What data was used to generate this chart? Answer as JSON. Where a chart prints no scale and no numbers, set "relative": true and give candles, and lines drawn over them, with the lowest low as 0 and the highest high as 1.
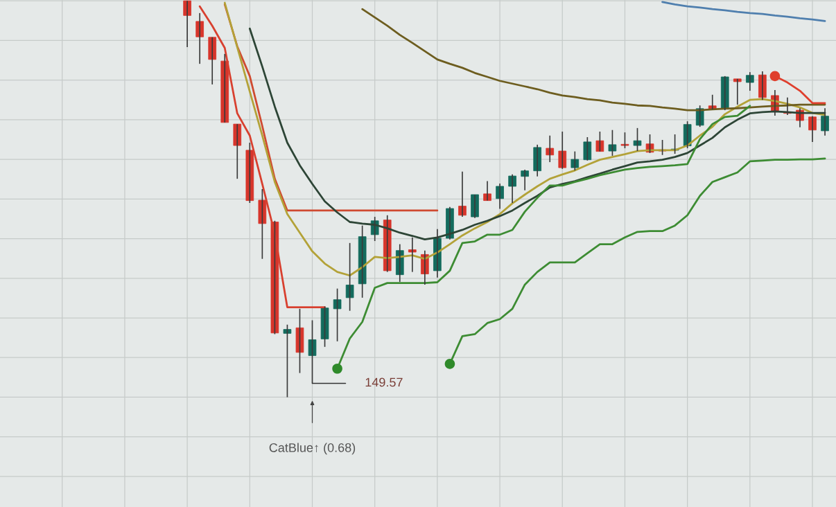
{
  "chart_data": {
    "type": "candlestick",
    "relative": true,
    "grid": true,
    "categories": [
      null,
      null,
      null,
      null,
      null,
      null,
      null,
      null,
      null,
      null,
      null,
      null,
      null,
      null,
      null,
      null,
      null,
      null,
      null,
      null,
      null,
      null,
      null,
      null,
      null,
      null,
      null,
      null,
      null,
      null,
      null,
      null,
      null,
      null,
      null,
      null,
      null,
      null,
      null,
      null,
      null,
      null,
      null,
      null,
      null,
      null,
      null,
      null,
      null,
      null,
      null,
      null
    ],
    "series": [
      {
        "type": "line",
        "color": "#d8402f",
        "values": [
          null,
          0.986,
          0.937,
          0.881,
          0.716,
          0.66,
          0.538,
          0.412,
          0.227,
          0.227,
          0.227,
          0.227,
          null,
          null,
          null,
          null,
          null,
          null,
          null,
          null,
          null,
          null,
          null,
          null,
          null,
          null,
          null,
          null,
          null,
          null,
          null,
          null,
          null,
          null,
          null,
          null,
          null,
          null,
          null,
          null,
          null,
          null,
          null,
          null,
          null,
          null,
          null,
          null,
          null,
          null,
          null,
          null
        ]
      },
      {
        "type": "line",
        "color": "#cf4a30",
        "values": [
          null,
          null,
          null,
          0.991,
          0.885,
          0.81,
          0.684,
          0.551,
          0.471,
          0.471,
          0.471,
          0.471,
          0.471,
          0.471,
          0.471,
          0.471,
          0.471,
          0.471,
          0.471,
          0.471,
          0.471,
          null,
          null,
          null,
          null,
          null,
          null,
          null,
          null,
          null,
          null,
          null,
          null,
          null,
          null,
          null,
          null,
          null,
          null,
          null,
          null,
          null,
          null,
          null,
          null,
          null,
          null,
          null,
          null,
          null,
          null,
          null
        ]
      },
      {
        "type": "line",
        "color": "#b3a238",
        "values": [
          null,
          null,
          null,
          0.995,
          0.883,
          0.771,
          0.66,
          0.543,
          0.462,
          0.415,
          0.368,
          0.337,
          0.316,
          0.307,
          0.328,
          0.354,
          0.351,
          0.354,
          0.358,
          0.349,
          0.365,
          0.386,
          0.408,
          0.426,
          0.442,
          0.462,
          0.489,
          0.511,
          0.532,
          0.551,
          0.562,
          0.572,
          0.586,
          0.599,
          0.606,
          0.613,
          0.621,
          0.623,
          0.623,
          0.623,
          0.635,
          0.66,
          0.682,
          0.714,
          0.733,
          0.75,
          0.752,
          0.747,
          0.74,
          0.731,
          0.717,
          0.712
        ]
      },
      {
        "type": "line",
        "color": "#2d4536",
        "values": [
          null,
          null,
          null,
          null,
          null,
          0.93,
          0.834,
          0.733,
          0.642,
          0.585,
          0.538,
          0.494,
          0.466,
          0.442,
          0.438,
          0.435,
          0.426,
          0.415,
          0.407,
          0.398,
          0.403,
          0.412,
          0.422,
          0.435,
          0.445,
          0.457,
          0.471,
          0.49,
          0.508,
          0.529,
          0.538,
          0.545,
          0.555,
          0.564,
          0.574,
          0.583,
          0.592,
          0.595,
          0.599,
          0.606,
          0.616,
          0.635,
          0.654,
          0.681,
          0.7,
          0.716,
          0.719,
          0.721,
          0.719,
          0.717,
          0.717,
          0.717
        ]
      },
      {
        "type": "line",
        "color": "#6d5d1f",
        "values": [
          null,
          null,
          null,
          null,
          null,
          null,
          null,
          null,
          null,
          null,
          null,
          null,
          null,
          null,
          0.979,
          0.958,
          0.937,
          0.914,
          0.894,
          0.873,
          0.852,
          0.841,
          0.831,
          0.818,
          0.808,
          0.798,
          0.791,
          0.784,
          0.777,
          0.768,
          0.761,
          0.757,
          0.752,
          0.749,
          0.743,
          0.74,
          0.736,
          0.735,
          0.731,
          0.728,
          0.724,
          0.724,
          0.726,
          0.728,
          0.729,
          0.731,
          0.733,
          0.735,
          0.736,
          0.738,
          0.738,
          0.738
        ]
      },
      {
        "type": "line",
        "color": "#4f7fae",
        "values": [
          null,
          null,
          null,
          null,
          null,
          null,
          null,
          null,
          null,
          null,
          null,
          null,
          null,
          null,
          null,
          null,
          null,
          null,
          null,
          null,
          null,
          null,
          null,
          null,
          null,
          null,
          null,
          null,
          null,
          null,
          null,
          null,
          null,
          null,
          null,
          null,
          null,
          null,
          0.997,
          0.991,
          0.986,
          0.983,
          0.979,
          0.976,
          0.972,
          0.969,
          0.967,
          0.963,
          0.96,
          0.956,
          0.953,
          0.949
        ]
      },
      {
        "type": "line",
        "color": "#3d8c33",
        "values": [
          null,
          null,
          null,
          null,
          null,
          null,
          null,
          null,
          null,
          null,
          null,
          null,
          0.072,
          0.148,
          0.19,
          0.276,
          0.288,
          0.288,
          0.288,
          0.288,
          0.29,
          0.319,
          0.389,
          0.393,
          0.41,
          0.41,
          0.422,
          0.468,
          0.503,
          0.534,
          0.534,
          0.543,
          0.551,
          0.56,
          0.567,
          0.574,
          0.578,
          0.581,
          0.583,
          0.585,
          0.588,
          0.651,
          0.689,
          0.707,
          0.71,
          0.735,
          null,
          null,
          null,
          null,
          null,
          null
        ]
      },
      {
        "type": "line",
        "color": "#3d8c33",
        "values": [
          null,
          null,
          null,
          null,
          null,
          null,
          null,
          null,
          null,
          null,
          null,
          null,
          null,
          null,
          null,
          null,
          null,
          null,
          null,
          null,
          null,
          0.084,
          0.154,
          0.159,
          0.187,
          0.197,
          0.223,
          0.284,
          0.316,
          0.34,
          0.34,
          0.34,
          0.363,
          0.386,
          0.386,
          0.403,
          0.417,
          0.419,
          0.419,
          0.433,
          0.459,
          0.508,
          0.543,
          0.555,
          0.567,
          0.595,
          0.597,
          0.599,
          0.599,
          0.6,
          0.6,
          0.602
        ]
      },
      {
        "type": "line",
        "color": "#df3f2d",
        "values": [
          null,
          null,
          null,
          null,
          null,
          null,
          null,
          null,
          null,
          null,
          null,
          null,
          null,
          null,
          null,
          null,
          null,
          null,
          null,
          null,
          null,
          null,
          null,
          null,
          null,
          null,
          null,
          null,
          null,
          null,
          null,
          null,
          null,
          null,
          null,
          null,
          null,
          null,
          null,
          null,
          null,
          null,
          null,
          null,
          null,
          null,
          null,
          0.81,
          0.794,
          0.773,
          0.742,
          0.742
        ]
      },
      {
        "type": "scatter",
        "marker": "circle",
        "color": "#2f8a2a",
        "values": [
          null,
          null,
          null,
          null,
          null,
          null,
          null,
          null,
          null,
          null,
          null,
          null,
          0.072,
          null,
          null,
          null,
          null,
          null,
          null,
          null,
          null,
          null,
          null,
          null,
          null,
          null,
          null,
          null,
          null,
          null,
          null,
          null,
          null,
          null,
          null,
          null,
          null,
          null,
          null,
          null,
          null,
          null,
          null,
          null,
          null,
          null,
          null,
          null,
          null,
          null,
          null,
          null
        ]
      },
      {
        "type": "scatter",
        "marker": "circle",
        "color": "#2f8a2a",
        "values": [
          null,
          null,
          null,
          null,
          null,
          null,
          null,
          null,
          null,
          null,
          null,
          null,
          null,
          null,
          null,
          null,
          null,
          null,
          null,
          null,
          null,
          0.084,
          null,
          null,
          null,
          null,
          null,
          null,
          null,
          null,
          null,
          null,
          null,
          null,
          null,
          null,
          null,
          null,
          null,
          null,
          null,
          null,
          null,
          null,
          null,
          null,
          null,
          null,
          null,
          null,
          null,
          null
        ]
      },
      {
        "type": "scatter",
        "marker": "circle",
        "color": "#df3f2d",
        "values": [
          null,
          null,
          null,
          null,
          null,
          null,
          null,
          null,
          null,
          null,
          null,
          null,
          null,
          null,
          null,
          null,
          null,
          null,
          null,
          null,
          null,
          null,
          null,
          null,
          null,
          null,
          null,
          null,
          null,
          null,
          null,
          null,
          null,
          null,
          null,
          null,
          null,
          null,
          null,
          null,
          null,
          null,
          null,
          null,
          null,
          null,
          null,
          0.81,
          null,
          null,
          null,
          null
        ]
      },
      {
        "ohlc": [
          [
            1.0,
            1.0,
            0.883,
            0.963
          ],
          [
            0.948,
            0.969,
            0.841,
            0.909
          ],
          [
            0.908,
            0.908,
            0.789,
            0.852
          ],
          [
            0.848,
            0.866,
            0.693,
            0.693
          ],
          [
            0.689,
            0.689,
            0.551,
            0.635
          ],
          [
            0.623,
            0.642,
            0.49,
            0.496
          ],
          [
            0.497,
            0.525,
            0.349,
            0.438
          ],
          [
            0.442,
            0.445,
            0.159,
            0.162
          ],
          [
            0.161,
            0.183,
            0.0,
            0.171
          ],
          [
            0.175,
            0.223,
            0.061,
            0.113
          ],
          [
            0.105,
            0.194,
            0.035,
            0.145
          ],
          [
            0.147,
            0.229,
            0.127,
            0.225
          ],
          [
            0.223,
            0.274,
            0.141,
            0.246
          ],
          [
            0.251,
            0.389,
            0.218,
            0.283
          ],
          [
            0.286,
            0.433,
            0.251,
            0.405
          ],
          [
            0.41,
            0.455,
            0.394,
            0.445
          ],
          [
            0.447,
            0.459,
            0.316,
            0.319
          ],
          [
            0.309,
            0.386,
            0.291,
            0.37
          ],
          [
            0.372,
            0.403,
            0.316,
            0.366
          ],
          [
            0.36,
            0.37,
            0.284,
            0.311
          ],
          [
            0.319,
            0.424,
            0.302,
            0.401
          ],
          [
            0.401,
            0.48,
            0.398,
            0.476
          ],
          [
            0.482,
            0.569,
            0.455,
            0.459
          ],
          [
            0.455,
            0.511,
            0.452,
            0.511
          ],
          [
            0.513,
            0.545,
            0.496,
            0.496
          ],
          [
            0.501,
            0.539,
            0.475,
            0.532
          ],
          [
            0.532,
            0.562,
            0.49,
            0.558
          ],
          [
            0.557,
            0.574,
            0.522,
            0.571
          ],
          [
            0.571,
            0.637,
            0.557,
            0.63
          ],
          [
            0.628,
            0.66,
            0.593,
            0.611
          ],
          [
            0.621,
            0.67,
            0.576,
            0.579
          ],
          [
            0.579,
            0.62,
            0.572,
            0.6
          ],
          [
            0.599,
            0.656,
            0.597,
            0.644
          ],
          [
            0.647,
            0.67,
            0.62,
            0.62
          ],
          [
            0.621,
            0.674,
            0.609,
            0.637
          ],
          [
            0.637,
            0.668,
            0.628,
            0.635
          ],
          [
            0.635,
            0.679,
            0.621,
            0.647
          ],
          [
            0.639,
            0.663,
            0.616,
            0.618
          ],
          [
            0.623,
            0.649,
            0.611,
            0.621
          ],
          [
            0.623,
            0.663,
            0.614,
            0.625
          ],
          [
            0.634,
            0.696,
            0.628,
            0.688
          ],
          [
            0.686,
            0.736,
            0.682,
            0.728
          ],
          [
            0.735,
            0.763,
            0.726,
            0.726
          ],
          [
            0.729,
            0.81,
            0.724,
            0.808
          ],
          [
            0.803,
            0.803,
            0.738,
            0.796
          ],
          [
            0.794,
            0.82,
            0.773,
            0.812
          ],
          [
            0.813,
            0.822,
            0.75,
            0.756
          ],
          [
            0.761,
            0.775,
            0.71,
            0.721
          ],
          [
            0.717,
            0.756,
            0.712,
            0.716
          ],
          [
            0.724,
            0.729,
            0.681,
            0.698
          ],
          [
            0.707,
            0.709,
            0.644,
            0.674
          ],
          [
            0.672,
            0.729,
            0.66,
            0.709
          ]
        ],
        "colors": [
          "#d7352b",
          "#d7352b",
          "#d7352b",
          "#d7352b",
          "#d7352b",
          "#d7352b",
          "#d7352b",
          "#d7352b",
          "#136b5d",
          "#d7352b",
          "#136b5d",
          "#136b5d",
          "#136b5d",
          "#136b5d",
          "#136b5d",
          "#136b5d",
          "#d7352b",
          "#136b5d",
          "#d7352b",
          "#d7352b",
          "#136b5d",
          "#136b5d",
          "#d7352b",
          "#136b5d",
          "#d7352b",
          "#136b5d",
          "#136b5d",
          "#136b5d",
          "#136b5d",
          "#d7352b",
          "#d7352b",
          "#136b5d",
          "#136b5d",
          "#d7352b",
          "#136b5d",
          "#d7352b",
          "#136b5d",
          "#d7352b",
          "#d7352b",
          "#136b5d",
          "#136b5d",
          "#136b5d",
          "#d7352b",
          "#136b5d",
          "#d7352b",
          "#136b5d",
          "#d7352b",
          "#d7352b",
          "#d7352b",
          "#d7352b",
          "#d7352b",
          "#136b5d"
        ]
      }
    ],
    "annotations": [
      "149.57",
      "CatBlue↑ (0.68)"
    ]
  }
}
